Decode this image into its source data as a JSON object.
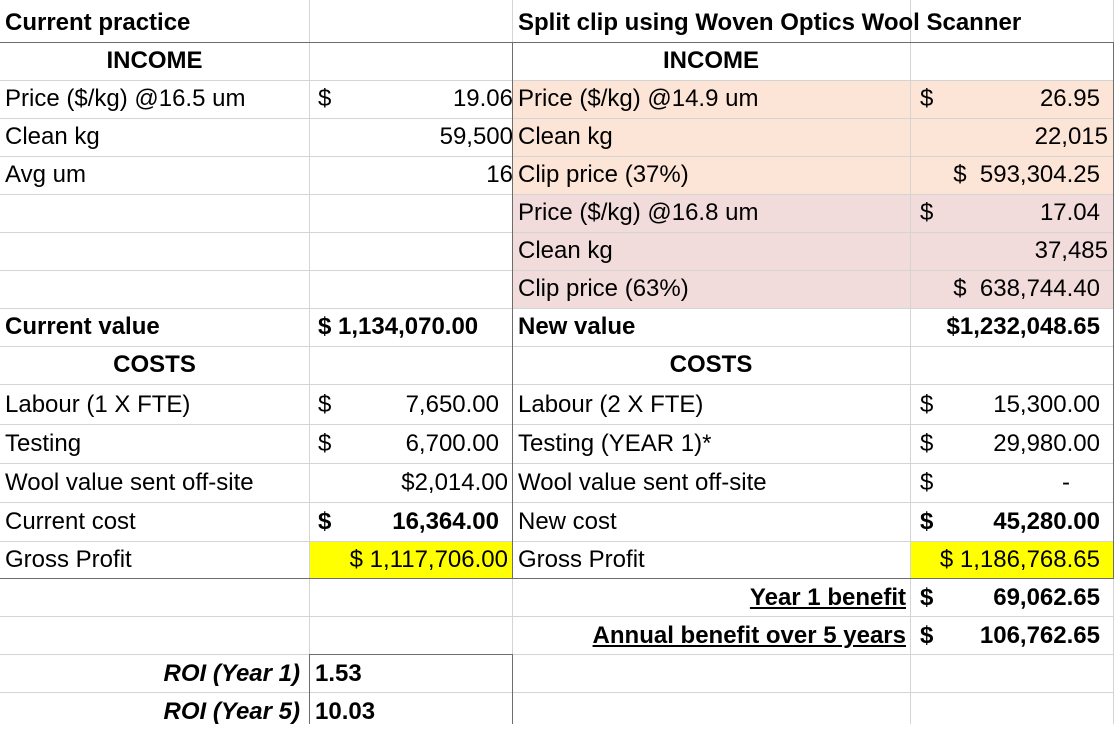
{
  "left": {
    "title": "Current practice",
    "income_header": "INCOME",
    "price_label": "Price ($/kg) @16.5 um",
    "price_dollar": "$",
    "price_value": "19.06",
    "clean_kg_label": "Clean kg",
    "clean_kg_value": "59,500",
    "avg_um_label": "Avg um",
    "avg_um_value": "16",
    "current_value_label": "Current value",
    "current_value": "$ 1,134,070.00",
    "costs_header": "COSTS",
    "labour_label": "Labour (1 X FTE)",
    "labour_dollar": "$",
    "labour_value": "7,650.00",
    "testing_label": "Testing",
    "testing_dollar": "$",
    "testing_value": "6,700.00",
    "wool_offsite_label": "Wool value sent off-site",
    "wool_offsite_value": "$2,014.00",
    "current_cost_label": "Current cost",
    "current_cost_dollar": "$",
    "current_cost_value": "16,364.00",
    "gross_profit_label": "Gross Profit",
    "gross_profit_value": "$ 1,117,706.00",
    "roi_y1_label": "ROI (Year 1)",
    "roi_y1_value": "1.53",
    "roi_y5_label": "ROI (Year 5)",
    "roi_y5_value": "10.03"
  },
  "right": {
    "title": "Split clip using Woven Optics Wool Scanner",
    "income_header": "INCOME",
    "price1_label": "Price ($/kg) @14.9 um",
    "price1_dollar": "$",
    "price1_value": "26.95",
    "clean1_label": "Clean kg",
    "clean1_value": "22,015",
    "clip1_label": "Clip price (37%)",
    "clip1_value": "$  593,304.25",
    "price2_label": "Price ($/kg) @16.8 um",
    "price2_dollar": "$",
    "price2_value": "17.04",
    "clean2_label": "Clean kg",
    "clean2_value": "37,485",
    "clip2_label": "Clip price (63%)",
    "clip2_value": "$  638,744.40",
    "new_value_label": "New value",
    "new_value": "$1,232,048.65",
    "costs_header": "COSTS",
    "labour_label": "Labour (2 X FTE)",
    "labour_dollar": "$",
    "labour_value": "15,300.00",
    "testing_label": "Testing (YEAR 1)*",
    "testing_dollar": "$",
    "testing_value": "29,980.00",
    "wool_offsite_label": "Wool value sent off-site",
    "wool_offsite_dollar": "$",
    "wool_offsite_value": "-",
    "new_cost_label": "New cost",
    "new_cost_dollar": "$",
    "new_cost_value": "45,280.00",
    "gross_profit_label": "Gross Profit",
    "gross_profit_value": "$ 1,186,768.65",
    "year1_benefit_label": "Year 1 benefit",
    "year1_benefit_dollar": "$",
    "year1_benefit_value": "69,062.65",
    "annual_benefit_label": "Annual benefit over 5 years",
    "annual_benefit_dollar": "$",
    "annual_benefit_value": "106,762.65"
  },
  "colors": {
    "peach_fill": "#FCE4D6",
    "pink_fill": "#F2DCDB",
    "yellow_highlight": "#FFFF00",
    "gridline": "#D4D4D4"
  }
}
